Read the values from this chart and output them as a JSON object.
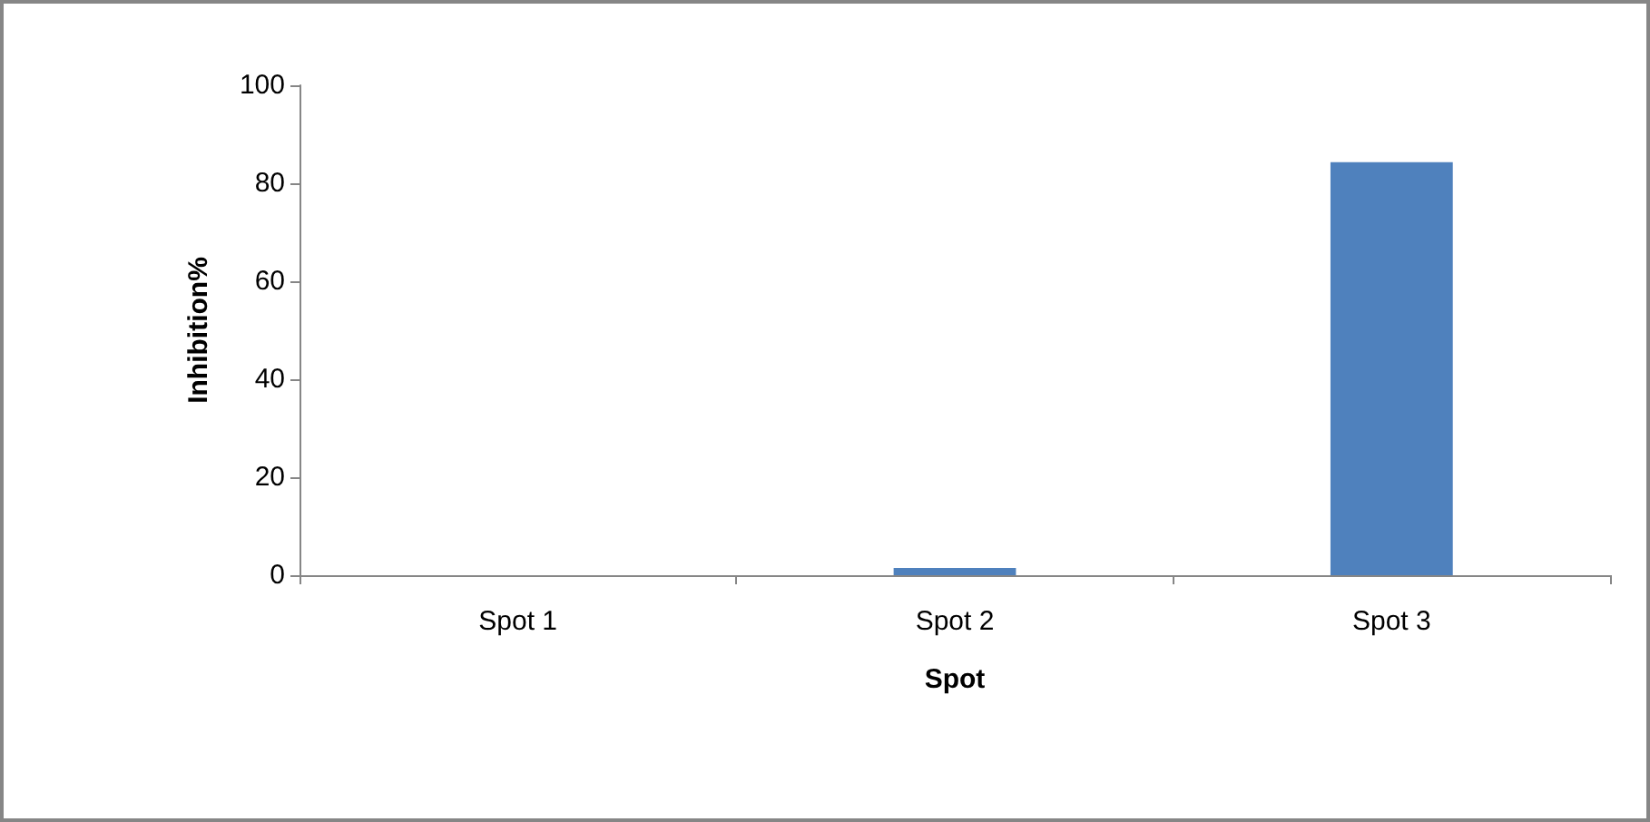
{
  "chart_data": {
    "type": "bar",
    "xlabel": "Spot",
    "ylabel": "Inhibition%",
    "categories": [
      "Spot 1",
      "Spot 2",
      "Spot 3"
    ],
    "values": [
      0,
      1.5,
      84.3
    ],
    "color": "#4f81bd",
    "ylim": [
      0,
      100
    ],
    "yticks": [
      0,
      20,
      40,
      60,
      80,
      100
    ],
    "grid": false
  }
}
